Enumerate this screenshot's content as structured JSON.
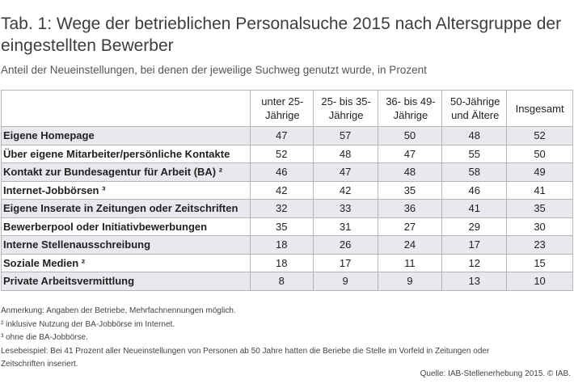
{
  "title": "Tab. 1: Wege der betrieblichen Personalsuche 2015 nach Altersgruppe der eingestellten Bewerber",
  "subtitle": "Anteil der Neueinstellungen, bei denen der jeweilige Suchweg genutzt wurde, in Prozent",
  "table": {
    "headers": [
      "",
      "unter 25-Jährige",
      "25- bis 35-Jährige",
      "36- bis 49-Jährige",
      "50-Jährige und Ältere",
      "Insgesamt"
    ],
    "rows": [
      {
        "label": "Eigene Homepage",
        "values": [
          "47",
          "57",
          "50",
          "48",
          "52"
        ]
      },
      {
        "label": "Über eigene Mitarbeiter/persönliche Kontakte",
        "values": [
          "52",
          "48",
          "47",
          "55",
          "50"
        ]
      },
      {
        "label": "Kontakt zur Bundesagentur für Arbeit (BA) ²",
        "values": [
          "46",
          "47",
          "48",
          "58",
          "49"
        ]
      },
      {
        "label": "Internet-Jobbörsen ³",
        "values": [
          "42",
          "42",
          "35",
          "46",
          "41"
        ]
      },
      {
        "label": "Eigene Inserate in Zeitungen oder Zeitschriften",
        "values": [
          "32",
          "33",
          "36",
          "41",
          "35"
        ]
      },
      {
        "label": "Bewerberpool oder Initiativbewerbungen",
        "values": [
          "35",
          "31",
          "27",
          "29",
          "30"
        ]
      },
      {
        "label": "Interne Stellenausschreibung",
        "values": [
          "18",
          "26",
          "24",
          "17",
          "23"
        ]
      },
      {
        "label": "Soziale Medien ²",
        "values": [
          "18",
          "17",
          "11",
          "12",
          "15"
        ]
      },
      {
        "label": "Private Arbeitsvermittlung",
        "values": [
          "8",
          "9",
          "9",
          "13",
          "10"
        ]
      }
    ]
  },
  "notes": {
    "remark": "Anmerkung: Angaben der Betriebe, Mehrfachnennungen möglich.",
    "footnote2": "² inklusive Nutzung der BA-Jobbörse im Internet.",
    "footnote3": "³ ohne die BA-Jobbörse.",
    "example_line1": "Lesebeispiel:  Bei 41 Prozent aller Neueinstellungen von Personen ab 50 Jahre hatten die Beriebe die Stelle im Vorfeld in Zeitungen oder",
    "example_line2": "Zeitschriften inseriert."
  },
  "source": "Quelle: IAB-Stellenerhebung 2015. © IAB.",
  "colors": {
    "stripe": "#e8e8ee",
    "border": "#b5b5b5"
  }
}
